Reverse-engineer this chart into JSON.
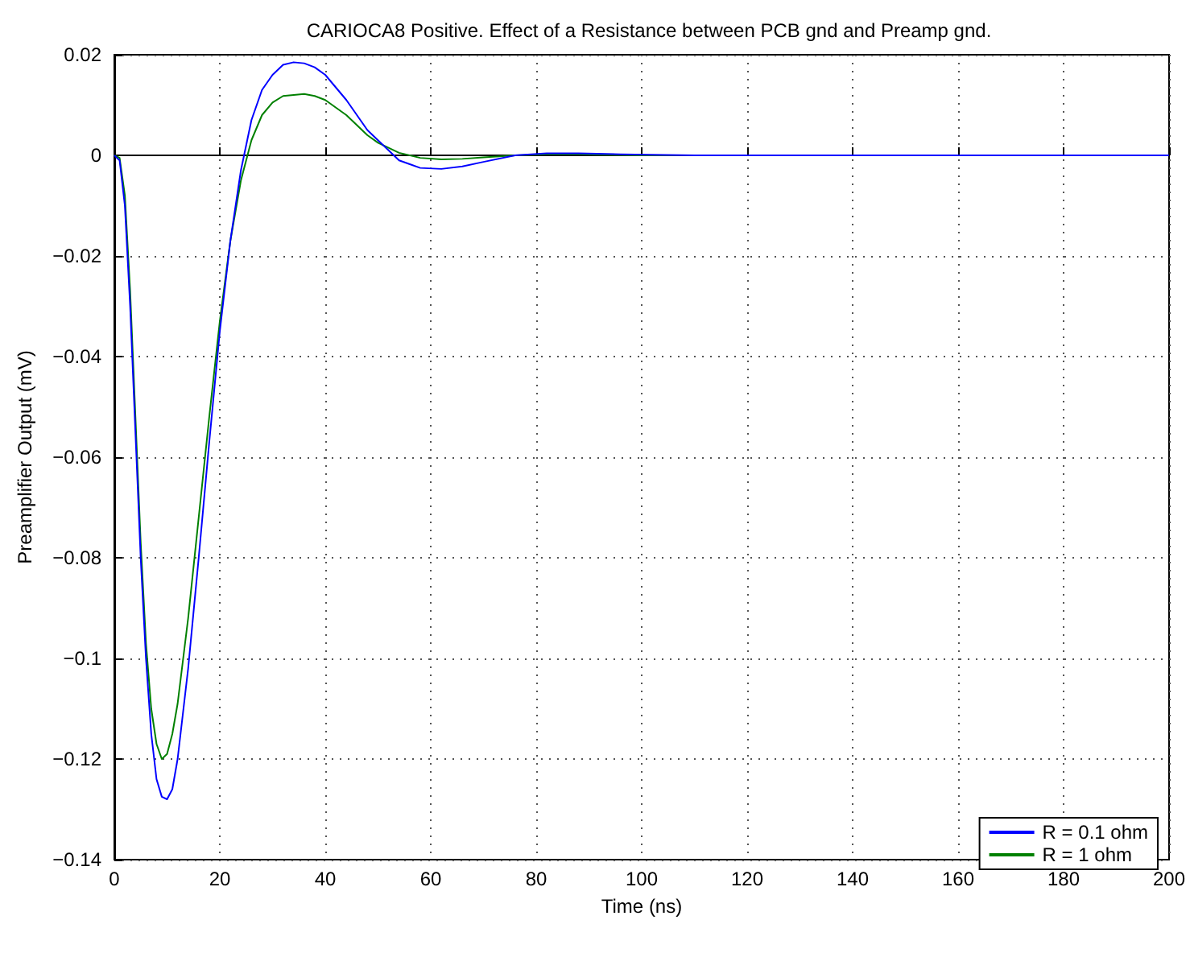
{
  "chart_data": {
    "type": "line",
    "title": "CARIOCA8 Positive. Effect of a Resistance between PCB gnd and Preamp gnd.",
    "xlabel": "Time (ns)",
    "ylabel": "Preamplifier Output (mV)",
    "xlim": [
      0,
      200
    ],
    "xticks": [
      0,
      20,
      40,
      60,
      80,
      100,
      120,
      140,
      160,
      180,
      200
    ],
    "ylim": [
      -0.14,
      0.02
    ],
    "yticks": [
      {
        "value": -0.14,
        "label": "−0.14"
      },
      {
        "value": -0.12,
        "label": "−0.12"
      },
      {
        "value": -0.1,
        "label": "−0.1"
      },
      {
        "value": -0.08,
        "label": "−0.08"
      },
      {
        "value": -0.06,
        "label": "−0.06"
      },
      {
        "value": -0.04,
        "label": "−0.04"
      },
      {
        "value": -0.02,
        "label": "−0.02"
      },
      0,
      0.02
    ],
    "grid": true,
    "legend": "bottom right",
    "marker": "none",
    "line_style": "solid",
    "series": [
      {
        "name": "R = 0.1 ohm",
        "color": "#0000ff",
        "x": [
          0,
          1,
          2,
          3,
          4,
          5,
          6,
          7,
          8,
          9,
          10,
          11,
          12,
          14,
          16,
          18,
          20,
          22,
          24,
          26,
          28,
          30,
          32,
          34,
          36,
          38,
          40,
          44,
          48,
          50,
          54,
          58,
          62,
          66,
          70,
          76,
          82,
          88,
          96,
          110,
          200
        ],
        "values": [
          0,
          -0.001,
          -0.01,
          -0.03,
          -0.055,
          -0.08,
          -0.1,
          -0.115,
          -0.124,
          -0.1275,
          -0.128,
          -0.126,
          -0.12,
          -0.102,
          -0.08,
          -0.057,
          -0.035,
          -0.017,
          -0.003,
          0.007,
          0.013,
          0.016,
          0.018,
          0.0185,
          0.0183,
          0.0175,
          0.016,
          0.011,
          0.005,
          0.003,
          -0.001,
          -0.0025,
          -0.0027,
          -0.0022,
          -0.0013,
          0,
          0.0004,
          0.0004,
          0.0002,
          0,
          0
        ]
      },
      {
        "name": "R = 1 ohm",
        "color": "#008000",
        "x": [
          0,
          1,
          2,
          3,
          4,
          5,
          6,
          7,
          8,
          9,
          10,
          11,
          12,
          14,
          16,
          18,
          20,
          22,
          24,
          26,
          28,
          30,
          32,
          34,
          36,
          38,
          40,
          44,
          48,
          50,
          54,
          58,
          62,
          66,
          70,
          76,
          82,
          88,
          100,
          200
        ],
        "values": [
          0,
          -0.0005,
          -0.008,
          -0.027,
          -0.052,
          -0.077,
          -0.097,
          -0.11,
          -0.117,
          -0.12,
          -0.119,
          -0.115,
          -0.109,
          -0.092,
          -0.072,
          -0.052,
          -0.033,
          -0.017,
          -0.005,
          0.003,
          0.008,
          0.0105,
          0.0118,
          0.012,
          0.0122,
          0.0118,
          0.011,
          0.008,
          0.004,
          0.0025,
          0.0005,
          -0.0005,
          -0.0008,
          -0.0007,
          -0.0004,
          0,
          0.0002,
          0.0002,
          0,
          0
        ]
      }
    ]
  }
}
